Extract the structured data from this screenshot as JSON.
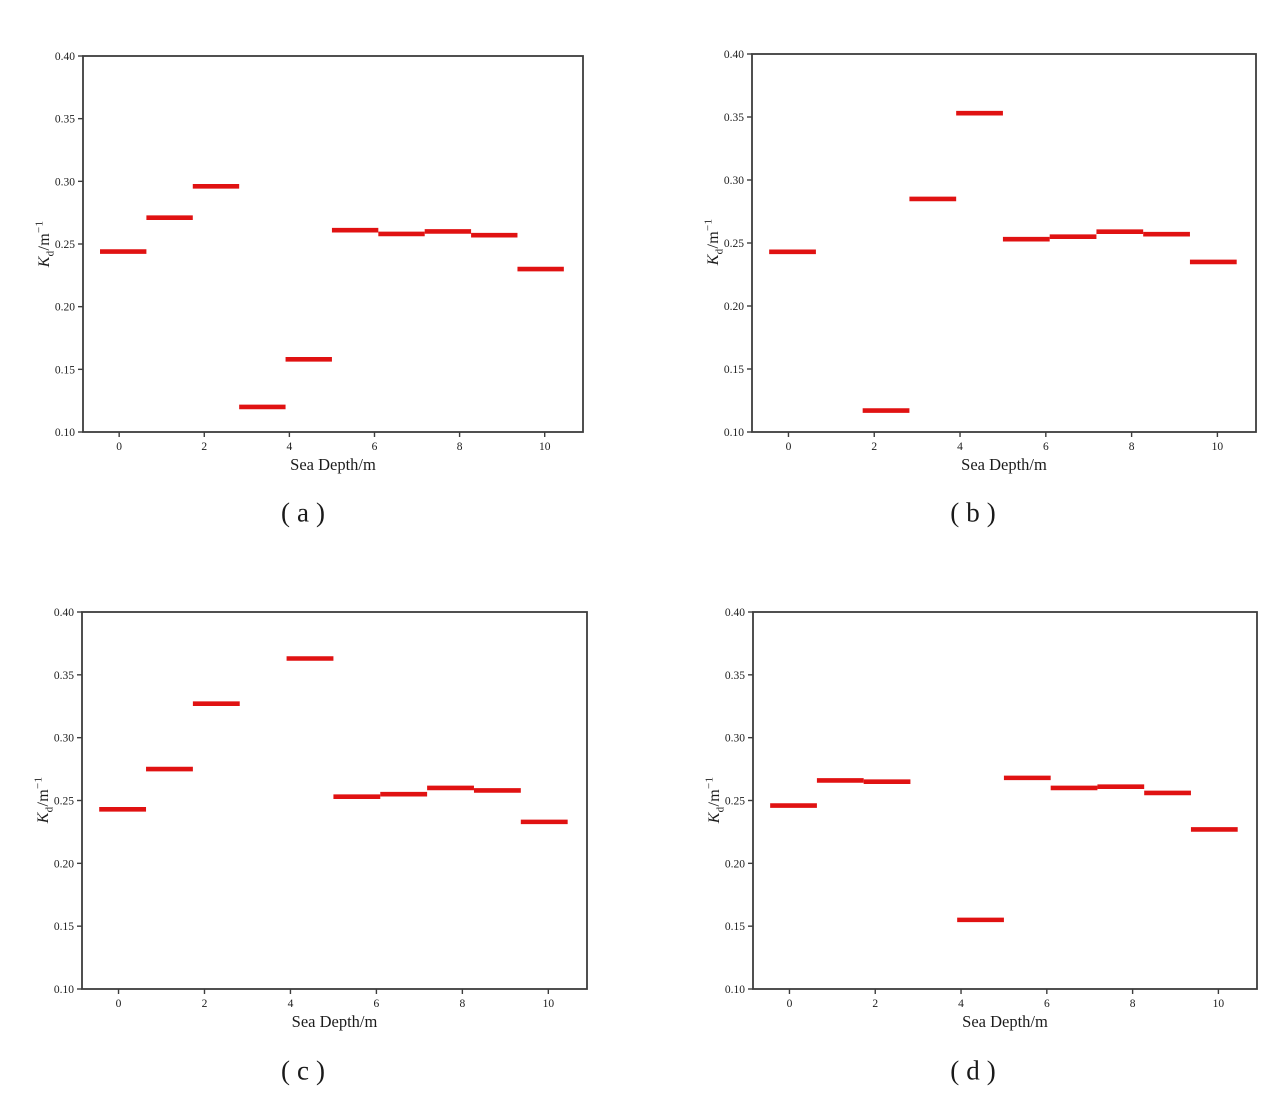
{
  "page": {
    "background": "#ffffff"
  },
  "chart_data": [
    {
      "type": "line",
      "mark": "horizontal-segments",
      "title": "(a)",
      "label": "(a)",
      "xlabel": "Sea Depth/m",
      "ylabel": "Kd/m-1",
      "ylabel_parts": {
        "base": "K",
        "sub": "d",
        "mid": "/m",
        "sup": "−1"
      },
      "color": "#e01212",
      "xlim": [
        -0.85,
        10.9
      ],
      "ylim": [
        0.1,
        0.4
      ],
      "grid": false,
      "xticks": [
        0,
        2,
        4,
        6,
        8,
        10
      ],
      "xtick_labels": [
        "0",
        "2",
        "4",
        "6",
        "8",
        "10"
      ],
      "yticks": [
        0.1,
        0.15,
        0.2,
        0.25,
        0.3,
        0.35,
        0.4
      ],
      "ytick_labels": [
        "0.10",
        "0.15",
        "0.20",
        "0.25",
        "0.30",
        "0.35",
        "0.40"
      ],
      "segments": [
        {
          "x0": -0.45,
          "x1": 0.64,
          "y": 0.244
        },
        {
          "x0": 0.64,
          "x1": 1.73,
          "y": 0.271
        },
        {
          "x0": 1.73,
          "x1": 2.82,
          "y": 0.296
        },
        {
          "x0": 2.82,
          "x1": 3.91,
          "y": 0.12
        },
        {
          "x0": 3.91,
          "x1": 5.0,
          "y": 0.158
        },
        {
          "x0": 5.0,
          "x1": 6.09,
          "y": 0.261
        },
        {
          "x0": 6.09,
          "x1": 7.18,
          "y": 0.258
        },
        {
          "x0": 7.18,
          "x1": 8.27,
          "y": 0.26
        },
        {
          "x0": 8.27,
          "x1": 9.36,
          "y": 0.257
        },
        {
          "x0": 9.36,
          "x1": 10.45,
          "y": 0.23
        }
      ]
    },
    {
      "type": "line",
      "mark": "horizontal-segments",
      "title": "(b)",
      "label": "(b)",
      "xlabel": "Sea Depth/m",
      "ylabel": "Kd/m-1",
      "ylabel_parts": {
        "base": "K",
        "sub": "d",
        "mid": "/m",
        "sup": "−1"
      },
      "color": "#e01212",
      "xlim": [
        -0.85,
        10.9
      ],
      "ylim": [
        0.1,
        0.4
      ],
      "grid": false,
      "xticks": [
        0,
        2,
        4,
        6,
        8,
        10
      ],
      "xtick_labels": [
        "0",
        "2",
        "4",
        "6",
        "8",
        "10"
      ],
      "yticks": [
        0.1,
        0.15,
        0.2,
        0.25,
        0.3,
        0.35,
        0.4
      ],
      "ytick_labels": [
        "0.10",
        "0.15",
        "0.20",
        "0.25",
        "0.30",
        "0.35",
        "0.40"
      ],
      "segments": [
        {
          "x0": -0.45,
          "x1": 0.64,
          "y": 0.243
        },
        {
          "x0": 1.73,
          "x1": 2.82,
          "y": 0.117
        },
        {
          "x0": 2.82,
          "x1": 3.91,
          "y": 0.285
        },
        {
          "x0": 3.91,
          "x1": 5.0,
          "y": 0.353
        },
        {
          "x0": 5.0,
          "x1": 6.09,
          "y": 0.253
        },
        {
          "x0": 6.09,
          "x1": 7.18,
          "y": 0.255
        },
        {
          "x0": 7.18,
          "x1": 8.27,
          "y": 0.259
        },
        {
          "x0": 8.27,
          "x1": 9.36,
          "y": 0.257
        },
        {
          "x0": 9.36,
          "x1": 10.45,
          "y": 0.235
        }
      ]
    },
    {
      "type": "line",
      "mark": "horizontal-segments",
      "title": "(c)",
      "label": "(c)",
      "xlabel": "Sea Depth/m",
      "ylabel": "Kd/m-1",
      "ylabel_parts": {
        "base": "K",
        "sub": "d",
        "mid": "/m",
        "sup": "−1"
      },
      "color": "#e01212",
      "xlim": [
        -0.85,
        10.9
      ],
      "ylim": [
        0.1,
        0.4
      ],
      "grid": false,
      "xticks": [
        0,
        2,
        4,
        6,
        8,
        10
      ],
      "xtick_labels": [
        "0",
        "2",
        "4",
        "6",
        "8",
        "10"
      ],
      "yticks": [
        0.1,
        0.15,
        0.2,
        0.25,
        0.3,
        0.35,
        0.4
      ],
      "ytick_labels": [
        "0.10",
        "0.15",
        "0.20",
        "0.25",
        "0.30",
        "0.35",
        "0.40"
      ],
      "segments": [
        {
          "x0": -0.45,
          "x1": 0.64,
          "y": 0.243
        },
        {
          "x0": 0.64,
          "x1": 1.73,
          "y": 0.275
        },
        {
          "x0": 1.73,
          "x1": 2.82,
          "y": 0.327
        },
        {
          "x0": 3.91,
          "x1": 5.0,
          "y": 0.363
        },
        {
          "x0": 5.0,
          "x1": 6.09,
          "y": 0.253
        },
        {
          "x0": 6.09,
          "x1": 7.18,
          "y": 0.255
        },
        {
          "x0": 7.18,
          "x1": 8.27,
          "y": 0.26
        },
        {
          "x0": 8.27,
          "x1": 9.36,
          "y": 0.258
        },
        {
          "x0": 9.36,
          "x1": 10.45,
          "y": 0.233
        }
      ]
    },
    {
      "type": "line",
      "mark": "horizontal-segments",
      "title": "(d)",
      "label": "(d)",
      "xlabel": "Sea Depth/m",
      "ylabel": "Kd/m-1",
      "ylabel_parts": {
        "base": "K",
        "sub": "d",
        "mid": "/m",
        "sup": "−1"
      },
      "color": "#e01212",
      "xlim": [
        -0.85,
        10.9
      ],
      "ylim": [
        0.1,
        0.4
      ],
      "grid": false,
      "xticks": [
        0,
        2,
        4,
        6,
        8,
        10
      ],
      "xtick_labels": [
        "0",
        "2",
        "4",
        "6",
        "8",
        "10"
      ],
      "yticks": [
        0.1,
        0.15,
        0.2,
        0.25,
        0.3,
        0.35,
        0.4
      ],
      "ytick_labels": [
        "0.10",
        "0.15",
        "0.20",
        "0.25",
        "0.30",
        "0.35",
        "0.40"
      ],
      "segments": [
        {
          "x0": -0.45,
          "x1": 0.64,
          "y": 0.246
        },
        {
          "x0": 0.64,
          "x1": 1.73,
          "y": 0.266
        },
        {
          "x0": 1.73,
          "x1": 2.82,
          "y": 0.265
        },
        {
          "x0": 3.91,
          "x1": 5.0,
          "y": 0.155
        },
        {
          "x0": 5.0,
          "x1": 6.09,
          "y": 0.268
        },
        {
          "x0": 6.09,
          "x1": 7.18,
          "y": 0.26
        },
        {
          "x0": 7.18,
          "x1": 8.27,
          "y": 0.261
        },
        {
          "x0": 8.27,
          "x1": 9.36,
          "y": 0.256
        },
        {
          "x0": 9.36,
          "x1": 10.45,
          "y": 0.227
        }
      ]
    }
  ],
  "style": {
    "spine_color": "#3d3d3d",
    "text_color": "#1c1c1c",
    "segment_color": "#e01212"
  }
}
